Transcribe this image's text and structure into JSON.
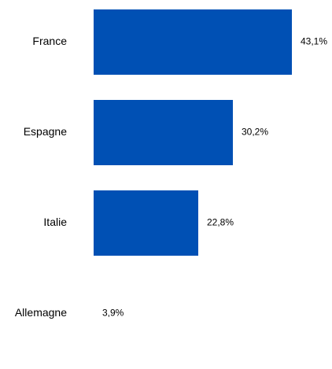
{
  "chart_data": {
    "type": "bar",
    "orientation": "horizontal",
    "categories": [
      "France",
      "Espagne",
      "Italie",
      "Allemagne"
    ],
    "values": [
      43.1,
      30.2,
      22.8,
      3.9
    ],
    "value_labels": [
      "43,1%",
      "30,2%",
      "22,8%",
      "3,9%"
    ],
    "title": "",
    "xlabel": "",
    "ylabel": "",
    "xlim": [
      0,
      43.1
    ],
    "grid": false,
    "legend": "none",
    "bar_color": "#0050b4"
  }
}
